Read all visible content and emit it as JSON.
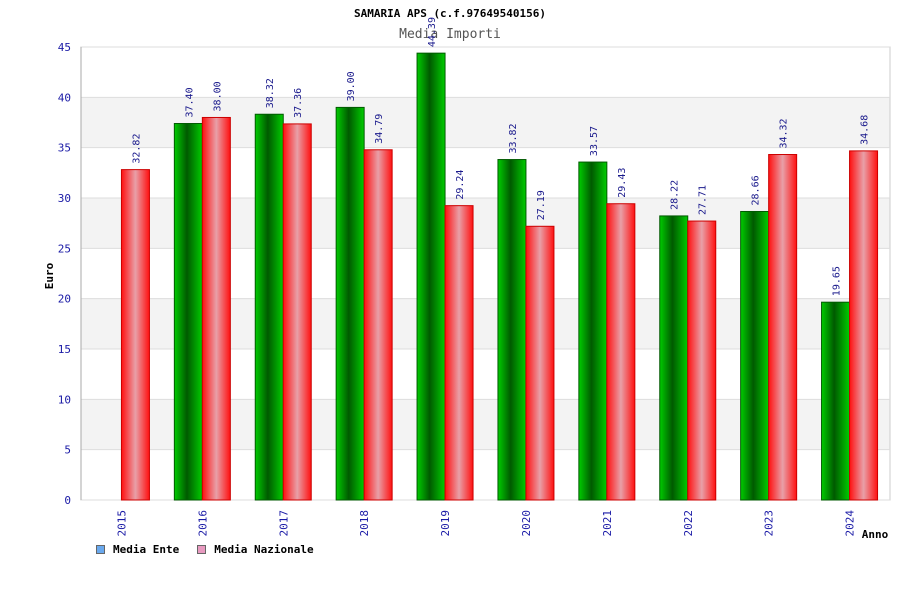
{
  "chart_data": {
    "type": "bar",
    "title": "SAMARIA APS (c.f.97649540156)",
    "subtitle": "Media Importi",
    "xlabel": "Anno",
    "ylabel": "Euro",
    "ylim": [
      0,
      45
    ],
    "yticks": [
      0,
      5,
      10,
      15,
      20,
      25,
      30,
      35,
      40,
      45
    ],
    "categories": [
      "2015",
      "2016",
      "2017",
      "2018",
      "2019",
      "2020",
      "2021",
      "2022",
      "2023",
      "2024"
    ],
    "series": [
      {
        "name": "Media Ente",
        "color": "#00cc00",
        "dark": "#005a00",
        "legend_color": "#6aa9ee",
        "values": [
          null,
          37.4,
          38.32,
          39.0,
          44.39,
          33.82,
          33.57,
          28.22,
          28.66,
          19.65
        ],
        "labels": [
          "",
          "37.40",
          "38.32",
          "39.00",
          "44.39",
          "33.82",
          "33.57",
          "28.22",
          "28.66",
          "19.65"
        ]
      },
      {
        "name": "Media Nazionale",
        "color": "#ff1010",
        "dark": "#cc0000",
        "light": "#e8a0a8",
        "legend_color": "#e89ac0",
        "values": [
          32.82,
          38.0,
          37.36,
          34.79,
          29.24,
          27.19,
          29.43,
          27.71,
          34.32,
          34.68
        ],
        "labels": [
          "32.82",
          "38.00",
          "37.36",
          "34.79",
          "29.24",
          "27.19",
          "29.43",
          "27.71",
          "34.32",
          "34.68"
        ]
      }
    ]
  }
}
